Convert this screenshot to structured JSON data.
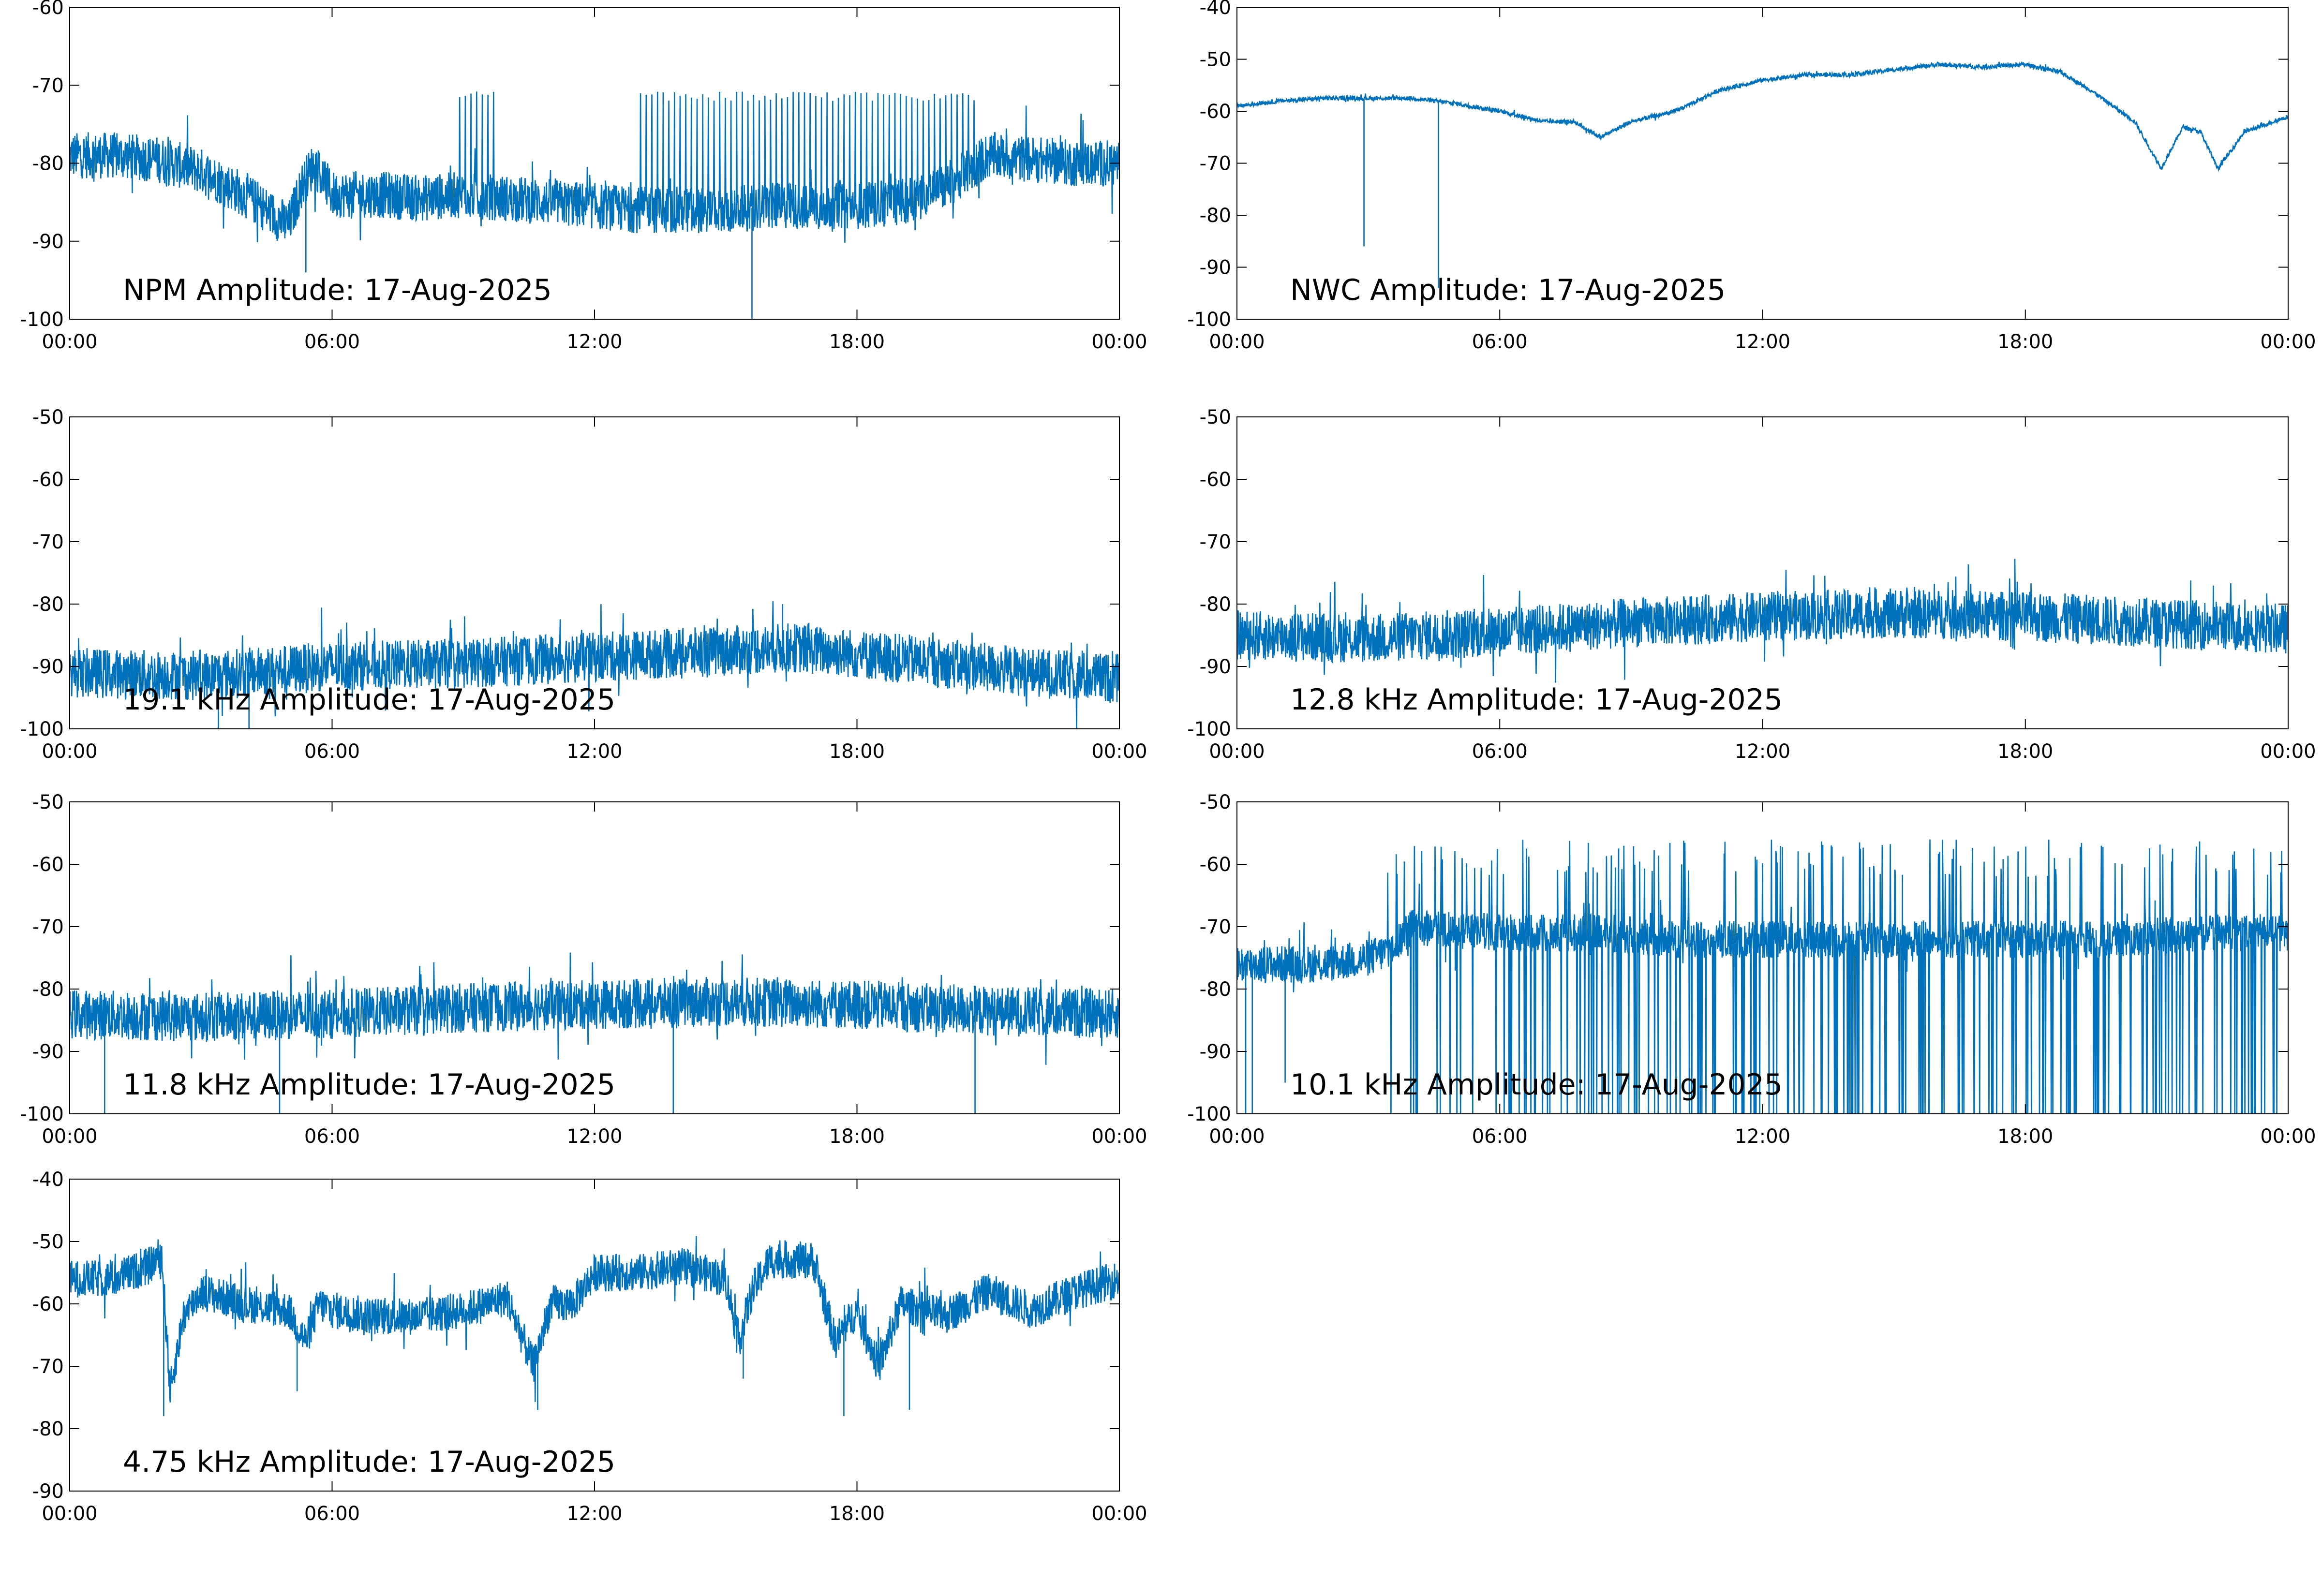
{
  "colors": {
    "trace": "#0072BD",
    "axes": "#000000",
    "background": "#ffffff"
  },
  "chart_data": [
    {
      "type": "line",
      "title": "NPM Amplitude: 17-Aug-2025",
      "xlabel": "",
      "ylabel": "",
      "x_ticks": [
        "00:00",
        "06:00",
        "12:00",
        "18:00",
        "00:00"
      ],
      "xlim_hours": [
        0,
        24
      ],
      "ylim": [
        -100,
        -60
      ],
      "y_ticks": [
        -100,
        -90,
        -80,
        -70,
        -60
      ],
      "grid": false,
      "series": [
        {
          "x_hours": [
            0,
            1,
            2,
            3,
            4,
            4.5,
            5,
            5.3,
            5.6,
            6,
            7,
            8,
            9,
            10,
            11,
            12,
            13,
            14,
            15,
            16,
            17,
            18,
            19,
            20,
            20.5,
            21,
            22,
            23,
            24
          ],
          "values": [
            -79,
            -79,
            -79.5,
            -81,
            -84,
            -86,
            -88,
            -83,
            -80,
            -84,
            -84,
            -84.5,
            -84,
            -84.5,
            -85,
            -85.5,
            -86,
            -86,
            -86,
            -85.5,
            -85.5,
            -85.5,
            -85,
            -83,
            -81,
            -79,
            -79.5,
            -80,
            -80
          ],
          "noise": 3,
          "bursts": [
            [
              8.8,
              9.7,
              -72
            ],
            [
              13,
              20.8,
              -72
            ]
          ],
          "drops": [
            [
              5.4,
              -94
            ],
            [
              15.6,
              -100
            ]
          ]
        }
      ]
    },
    {
      "type": "line",
      "title": "NWC Amplitude: 17-Aug-2025",
      "xlabel": "",
      "ylabel": "",
      "x_ticks": [
        "00:00",
        "06:00",
        "12:00",
        "18:00",
        "00:00"
      ],
      "xlim_hours": [
        0,
        24
      ],
      "ylim": [
        -100,
        -40
      ],
      "y_ticks": [
        -100,
        -90,
        -80,
        -70,
        -60,
        -50,
        -40
      ],
      "grid": false,
      "series": [
        {
          "x_hours": [
            0,
            1,
            2,
            3,
            4,
            5,
            6,
            7,
            7.7,
            8.3,
            9,
            10,
            11,
            12,
            13,
            14,
            15,
            16,
            17,
            18,
            18.8,
            19.5,
            20.5,
            21.1,
            21.6,
            22,
            22.4,
            23,
            24
          ],
          "values": [
            -59,
            -58,
            -57.5,
            -57.5,
            -57.5,
            -58.5,
            -60,
            -62,
            -62,
            -65,
            -62,
            -60,
            -56,
            -54,
            -53,
            -53,
            -52,
            -51,
            -51.5,
            -51,
            -52.5,
            -56,
            -62,
            -71,
            -63,
            -64,
            -71,
            -64,
            -61
          ],
          "noise": 0.4,
          "bursts": [],
          "drops": [
            [
              2.9,
              -86
            ],
            [
              4.6,
              -94
            ]
          ]
        }
      ]
    },
    {
      "type": "line",
      "title": "19.1 kHz Amplitude: 17-Aug-2025",
      "xlabel": "",
      "ylabel": "",
      "x_ticks": [
        "00:00",
        "06:00",
        "12:00",
        "18:00",
        "00:00"
      ],
      "xlim_hours": [
        0,
        24
      ],
      "ylim": [
        -100,
        -50
      ],
      "y_ticks": [
        -100,
        -90,
        -80,
        -70,
        -60,
        -50
      ],
      "grid": false,
      "series": [
        {
          "x_hours": [
            0,
            3,
            6,
            9,
            12,
            15,
            16.5,
            18,
            20,
            22,
            24
          ],
          "values": [
            -91,
            -91.5,
            -90,
            -89.5,
            -88.5,
            -87.5,
            -87,
            -88,
            -89.5,
            -91,
            -92
          ],
          "noise": 4,
          "bursts": [],
          "drops": [
            [
              3.4,
              -100
            ],
            [
              4.1,
              -100
            ],
            [
              4.7,
              -98
            ],
            [
              16.3,
              -80
            ],
            [
              16.9,
              -83
            ],
            [
              18.3,
              -85
            ]
          ]
        }
      ]
    },
    {
      "type": "line",
      "title": "12.8 kHz Amplitude: 17-Aug-2025",
      "xlabel": "",
      "ylabel": "",
      "x_ticks": [
        "00:00",
        "06:00",
        "12:00",
        "18:00",
        "00:00"
      ],
      "xlim_hours": [
        0,
        24
      ],
      "ylim": [
        -100,
        -50
      ],
      "y_ticks": [
        -100,
        -90,
        -80,
        -70,
        -60,
        -50
      ],
      "grid": false,
      "series": [
        {
          "x_hours": [
            0,
            3,
            6,
            9,
            12,
            15,
            18,
            21,
            24
          ],
          "values": [
            -85,
            -85.5,
            -84.5,
            -83,
            -82,
            -81.5,
            -82,
            -83,
            -84
          ],
          "noise": 4,
          "bursts": [],
          "drops": []
        }
      ]
    },
    {
      "type": "line",
      "title": "11.8 kHz Amplitude: 17-Aug-2025",
      "xlabel": "",
      "ylabel": "",
      "x_ticks": [
        "00:00",
        "06:00",
        "12:00",
        "18:00",
        "00:00"
      ],
      "xlim_hours": [
        0,
        24
      ],
      "ylim": [
        -100,
        -50
      ],
      "y_ticks": [
        -100,
        -90,
        -80,
        -70,
        -60,
        -50
      ],
      "grid": false,
      "series": [
        {
          "x_hours": [
            0,
            3,
            6,
            9,
            12,
            15,
            18,
            21,
            24
          ],
          "values": [
            -84,
            -84.5,
            -84,
            -83,
            -82.5,
            -82,
            -82.5,
            -83.5,
            -84
          ],
          "noise": 4,
          "bursts": [],
          "drops": [
            [
              0.8,
              -100
            ],
            [
              4.8,
              -100
            ],
            [
              13.8,
              -100
            ],
            [
              20.7,
              -100
            ]
          ]
        }
      ]
    },
    {
      "type": "line",
      "title": "10.1 kHz Amplitude: 17-Aug-2025",
      "xlabel": "",
      "ylabel": "",
      "x_ticks": [
        "00:00",
        "06:00",
        "12:00",
        "18:00",
        "00:00"
      ],
      "xlim_hours": [
        0,
        24
      ],
      "ylim": [
        -100,
        -50
      ],
      "y_ticks": [
        -100,
        -90,
        -80,
        -70,
        -60,
        -50
      ],
      "grid": false,
      "series": [
        {
          "x_hours": [
            0,
            1,
            2,
            3,
            3.4,
            4,
            6,
            8,
            10,
            12,
            14,
            16,
            18,
            20,
            22,
            24
          ],
          "values": [
            -76,
            -76,
            -76,
            -75,
            -74,
            -70,
            -71,
            -71,
            -72,
            -72,
            -72,
            -72,
            -72,
            -72,
            -71,
            -71
          ],
          "noise": 3,
          "bursts": [],
          "spikes_down": {
            "from": 3.4,
            "to": 24,
            "step": 0.14,
            "to_value": -100
          },
          "drops": [
            [
              0.2,
              -100
            ],
            [
              0.35,
              -100
            ],
            [
              1.1,
              -95
            ]
          ]
        }
      ]
    },
    {
      "type": "line",
      "title": "4.75 kHz Amplitude: 17-Aug-2025",
      "xlabel": "",
      "ylabel": "",
      "x_ticks": [
        "00:00",
        "06:00",
        "12:00",
        "18:00",
        "00:00"
      ],
      "xlim_hours": [
        0,
        24
      ],
      "ylim": [
        -90,
        -40
      ],
      "y_ticks": [
        -90,
        -80,
        -70,
        -60,
        -50,
        -40
      ],
      "grid": false,
      "series": [
        {
          "x_hours": [
            0,
            1,
            1.8,
            2.1,
            2.3,
            2.6,
            3,
            4,
            5,
            5.4,
            5.7,
            6,
            7,
            8,
            9,
            10,
            10.6,
            11,
            11.5,
            12,
            13,
            14,
            15,
            15.3,
            15.6,
            16,
            17,
            17.5,
            18,
            18.5,
            19,
            20,
            21,
            22,
            23,
            24
          ],
          "values": [
            -56,
            -56,
            -54,
            -52,
            -74,
            -62,
            -58,
            -60,
            -61,
            -66,
            -60,
            -61,
            -62,
            -62,
            -61,
            -59,
            -70,
            -60,
            -60,
            -55,
            -55,
            -54,
            -56,
            -66,
            -58,
            -53,
            -53,
            -66,
            -61,
            -70,
            -60,
            -62,
            -58,
            -61,
            -58,
            -56
          ],
          "noise": 3,
          "bursts": [],
          "drops": [
            [
              2.15,
              -78
            ],
            [
              5.2,
              -74
            ],
            [
              10.7,
              -77
            ],
            [
              15.4,
              -72
            ],
            [
              17.7,
              -78
            ],
            [
              19.2,
              -77
            ]
          ]
        }
      ]
    }
  ]
}
